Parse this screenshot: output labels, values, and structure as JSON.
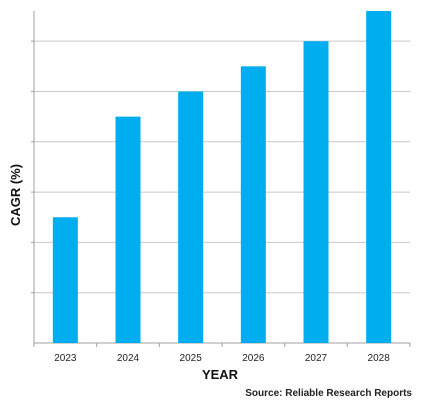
{
  "chart_data": {
    "type": "bar",
    "categories": [
      "2023",
      "2024",
      "2025",
      "2026",
      "2027",
      "2028"
    ],
    "values": [
      2.5,
      4.5,
      5.0,
      5.5,
      6.0,
      6.6
    ],
    "xlabel": "YEAR",
    "ylabel": "CAGR (%)",
    "ylim": [
      0,
      6.6
    ],
    "grid": true,
    "y_tick_labels_shown": false,
    "legend": "none",
    "source": "Source: Reliable Research Reports",
    "colors": {
      "bar": "#00AEEF",
      "grid": "#C8C8C8",
      "axis": "#A0A0A0"
    }
  }
}
